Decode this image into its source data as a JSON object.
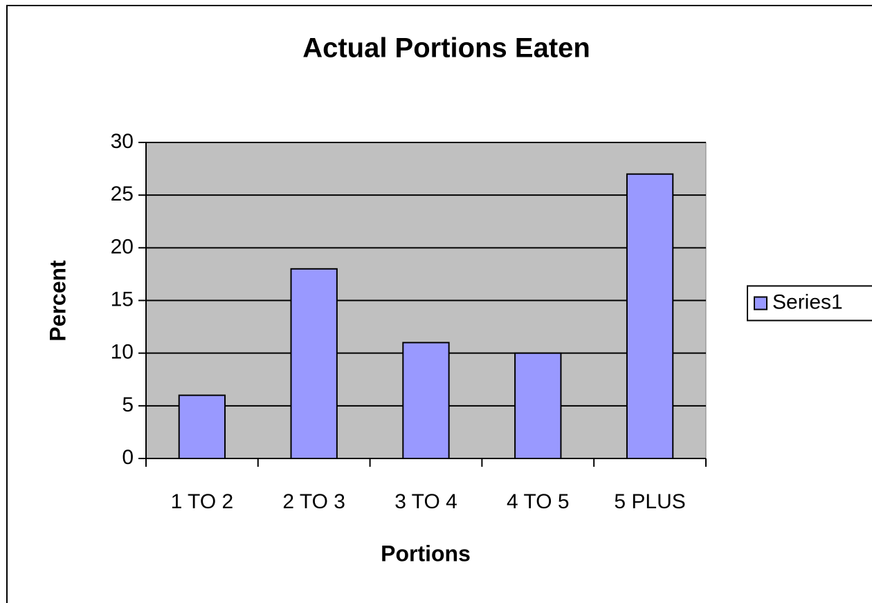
{
  "chart_data": {
    "type": "bar",
    "title": "Actual Portions Eaten",
    "x_label": "Portions",
    "y_label": "Percent",
    "categories": [
      "1 TO 2",
      "2 TO 3",
      "3 TO 4",
      "4 TO 5",
      "5 PLUS"
    ],
    "series": [
      {
        "name": "Series1",
        "color": "#9999ff",
        "values": [
          6,
          18,
          11,
          10,
          27
        ]
      }
    ],
    "ylim": [
      0,
      30
    ],
    "yticks": [
      0,
      5,
      10,
      15,
      20,
      25,
      30
    ],
    "grid": true,
    "legend": "right",
    "plot_background": "#c0c0c0"
  }
}
